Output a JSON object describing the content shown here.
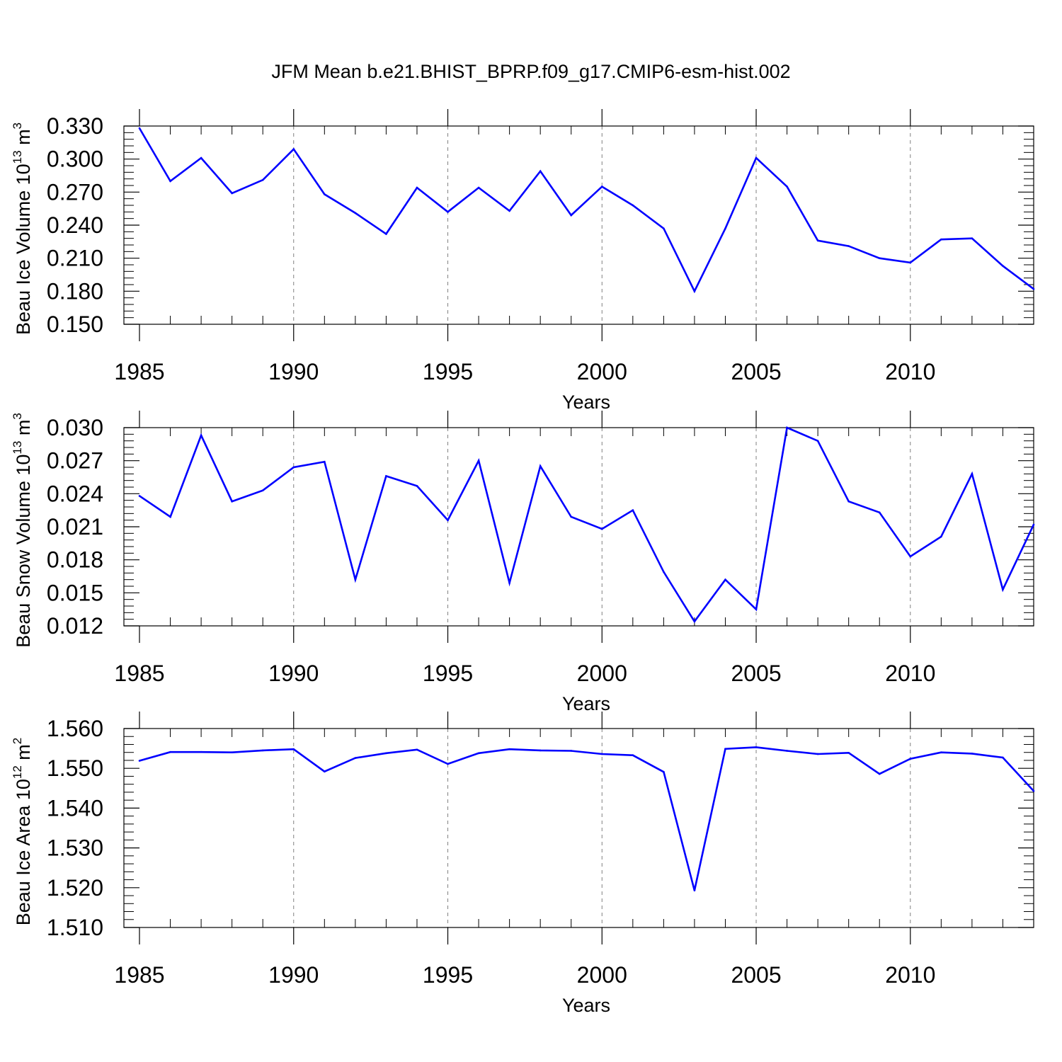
{
  "title": "JFM Mean b.e21.BHIST_BPRP.f09_g17.CMIP6-esm-hist.002",
  "colors": {
    "line": "#0000ff",
    "axis": "#000000",
    "grid": "#808080"
  },
  "chart_data": [
    {
      "type": "line",
      "ylabel": "Beau Ice Volume",
      "ylabel_unit_base": "10",
      "ylabel_unit_exp": "13",
      "ylabel_unit_tail": "m",
      "ylabel_unit_tail_exp": "3",
      "xlabel": "Years",
      "xlim": [
        1985,
        2014
      ],
      "ylim": [
        0.15,
        0.33
      ],
      "xticks": [
        1985,
        1990,
        1995,
        2000,
        2005,
        2010
      ],
      "ytick_labels": [
        "0.150",
        "0.180",
        "0.210",
        "0.240",
        "0.270",
        "0.300",
        "0.330"
      ],
      "ytick_values": [
        0.15,
        0.18,
        0.21,
        0.24,
        0.27,
        0.3,
        0.33
      ],
      "grid_x": true,
      "x": [
        1985,
        1986,
        1987,
        1988,
        1989,
        1990,
        1991,
        1992,
        1993,
        1994,
        1995,
        1996,
        1997,
        1998,
        1999,
        2000,
        2001,
        2002,
        2003,
        2004,
        2005,
        2006,
        2007,
        2008,
        2009,
        2010,
        2011,
        2012,
        2013,
        2014
      ],
      "y": [
        0.328,
        0.28,
        0.301,
        0.269,
        0.281,
        0.309,
        0.268,
        0.251,
        0.232,
        0.274,
        0.252,
        0.274,
        0.253,
        0.289,
        0.249,
        0.275,
        0.258,
        0.237,
        0.18,
        0.237,
        0.301,
        0.275,
        0.226,
        0.221,
        0.21,
        0.206,
        0.227,
        0.228,
        0.203,
        0.182
      ]
    },
    {
      "type": "line",
      "ylabel": "Beau Snow Volume",
      "ylabel_unit_base": "10",
      "ylabel_unit_exp": "13",
      "ylabel_unit_tail": "m",
      "ylabel_unit_tail_exp": "3",
      "xlabel": "Years",
      "xlim": [
        1985,
        2014
      ],
      "ylim": [
        0.012,
        0.03
      ],
      "xticks": [
        1985,
        1990,
        1995,
        2000,
        2005,
        2010
      ],
      "ytick_labels": [
        "0.012",
        "0.015",
        "0.018",
        "0.021",
        "0.024",
        "0.027",
        "0.030"
      ],
      "ytick_values": [
        0.012,
        0.015,
        0.018,
        0.021,
        0.024,
        0.027,
        0.03
      ],
      "grid_x": true,
      "x": [
        1985,
        1986,
        1987,
        1988,
        1989,
        1990,
        1991,
        1992,
        1993,
        1994,
        1995,
        1996,
        1997,
        1998,
        1999,
        2000,
        2001,
        2002,
        2003,
        2004,
        2005,
        2006,
        2007,
        2008,
        2009,
        2010,
        2011,
        2012,
        2013,
        2014
      ],
      "y": [
        0.0238,
        0.0219,
        0.0293,
        0.0233,
        0.0243,
        0.0264,
        0.0269,
        0.0162,
        0.0256,
        0.0247,
        0.0216,
        0.027,
        0.0159,
        0.0265,
        0.0219,
        0.0208,
        0.0225,
        0.0169,
        0.0124,
        0.0162,
        0.0135,
        0.03,
        0.0288,
        0.0233,
        0.0223,
        0.0183,
        0.0201,
        0.0258,
        0.0153,
        0.0212
      ]
    },
    {
      "type": "line",
      "ylabel": "Beau Ice Area",
      "ylabel_unit_base": "10",
      "ylabel_unit_exp": "12",
      "ylabel_unit_tail": "m",
      "ylabel_unit_tail_exp": "2",
      "xlabel": "Years",
      "xlim": [
        1985,
        2014
      ],
      "ylim": [
        1.51,
        1.56
      ],
      "xticks": [
        1985,
        1990,
        1995,
        2000,
        2005,
        2010
      ],
      "ytick_labels": [
        "1.510",
        "1.520",
        "1.530",
        "1.540",
        "1.550",
        "1.560"
      ],
      "ytick_values": [
        1.51,
        1.52,
        1.53,
        1.54,
        1.55,
        1.56
      ],
      "grid_x": true,
      "x": [
        1985,
        1986,
        1987,
        1988,
        1989,
        1990,
        1991,
        1992,
        1993,
        1994,
        1995,
        1996,
        1997,
        1998,
        1999,
        2000,
        2001,
        2002,
        2003,
        2004,
        2005,
        2006,
        2007,
        2008,
        2009,
        2010,
        2011,
        2012,
        2013,
        2014
      ],
      "y": [
        1.5519,
        1.5541,
        1.5541,
        1.554,
        1.5545,
        1.5548,
        1.5492,
        1.5526,
        1.5538,
        1.5547,
        1.5511,
        1.5538,
        1.5548,
        1.5545,
        1.5544,
        1.5536,
        1.5533,
        1.5491,
        1.5193,
        1.5549,
        1.5553,
        1.5544,
        1.5536,
        1.5539,
        1.5486,
        1.5524,
        1.554,
        1.5537,
        1.5527,
        1.5443
      ]
    }
  ]
}
